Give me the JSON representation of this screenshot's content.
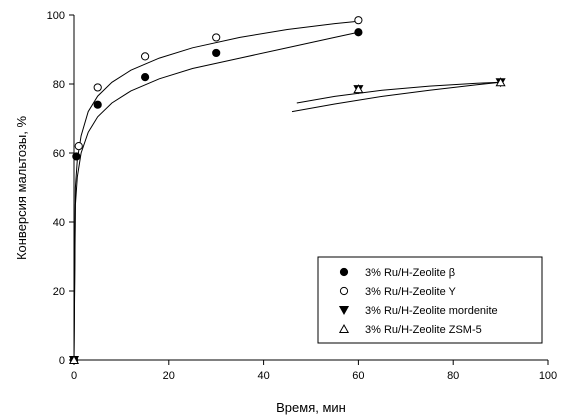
{
  "chart_data": {
    "type": "scatter",
    "xlabel": "Время, мин",
    "ylabel": "Конверсия мальтозы, %",
    "xlim": [
      0,
      100
    ],
    "ylim": [
      0,
      100
    ],
    "x_ticks": [
      0,
      20,
      40,
      60,
      80,
      100
    ],
    "y_ticks": [
      0,
      20,
      40,
      60,
      80,
      100
    ],
    "grid": false,
    "legend_position": "bottom-right",
    "series": [
      {
        "name": "3% Ru/H-Zeolite β",
        "marker": "filled-circle",
        "points": [
          [
            0,
            0
          ],
          [
            0.5,
            59
          ],
          [
            5,
            74
          ],
          [
            15,
            82
          ],
          [
            30,
            89
          ],
          [
            60,
            95
          ]
        ],
        "fit_curve": [
          [
            0,
            0
          ],
          [
            0.3,
            45
          ],
          [
            0.7,
            53
          ],
          [
            1.5,
            60
          ],
          [
            3,
            66
          ],
          [
            5,
            70.5
          ],
          [
            8,
            74.5
          ],
          [
            12,
            78
          ],
          [
            18,
            81.5
          ],
          [
            25,
            84.5
          ],
          [
            35,
            87.5
          ],
          [
            45,
            90.5
          ],
          [
            55,
            93.5
          ],
          [
            60,
            95
          ]
        ]
      },
      {
        "name": "3% Ru/H-Zeolite Y",
        "marker": "open-circle",
        "points": [
          [
            0,
            0
          ],
          [
            1,
            62
          ],
          [
            5,
            79
          ],
          [
            15,
            88
          ],
          [
            30,
            93.5
          ],
          [
            60,
            98.5
          ]
        ],
        "fit_curve": [
          [
            0,
            0
          ],
          [
            0.3,
            50
          ],
          [
            0.7,
            58
          ],
          [
            1.5,
            65
          ],
          [
            3,
            72
          ],
          [
            5,
            76.5
          ],
          [
            8,
            80.5
          ],
          [
            12,
            84
          ],
          [
            18,
            87.5
          ],
          [
            25,
            90.5
          ],
          [
            35,
            93.5
          ],
          [
            45,
            95.8
          ],
          [
            55,
            97.5
          ],
          [
            60,
            98.2
          ]
        ]
      },
      {
        "name": "3% Ru/H-Zeolite mordenite",
        "marker": "filled-triangle-down",
        "points": [
          [
            0,
            0
          ],
          [
            60,
            78.5
          ],
          [
            90,
            80.5
          ]
        ],
        "fit_curve": [
          [
            47,
            74.5
          ],
          [
            55,
            76.4
          ],
          [
            65,
            78.2
          ],
          [
            75,
            79.4
          ],
          [
            85,
            80.2
          ],
          [
            90,
            80.5
          ]
        ]
      },
      {
        "name": "3% Ru/H-Zeolite ZSM-5",
        "marker": "open-triangle-up",
        "points": [
          [
            0,
            0
          ],
          [
            60,
            78.5
          ],
          [
            90,
            80.5
          ]
        ],
        "fit_curve": [
          [
            46,
            72
          ],
          [
            55,
            74.2
          ],
          [
            65,
            76.4
          ],
          [
            75,
            78.2
          ],
          [
            85,
            79.8
          ],
          [
            90,
            80.5
          ]
        ]
      }
    ]
  }
}
